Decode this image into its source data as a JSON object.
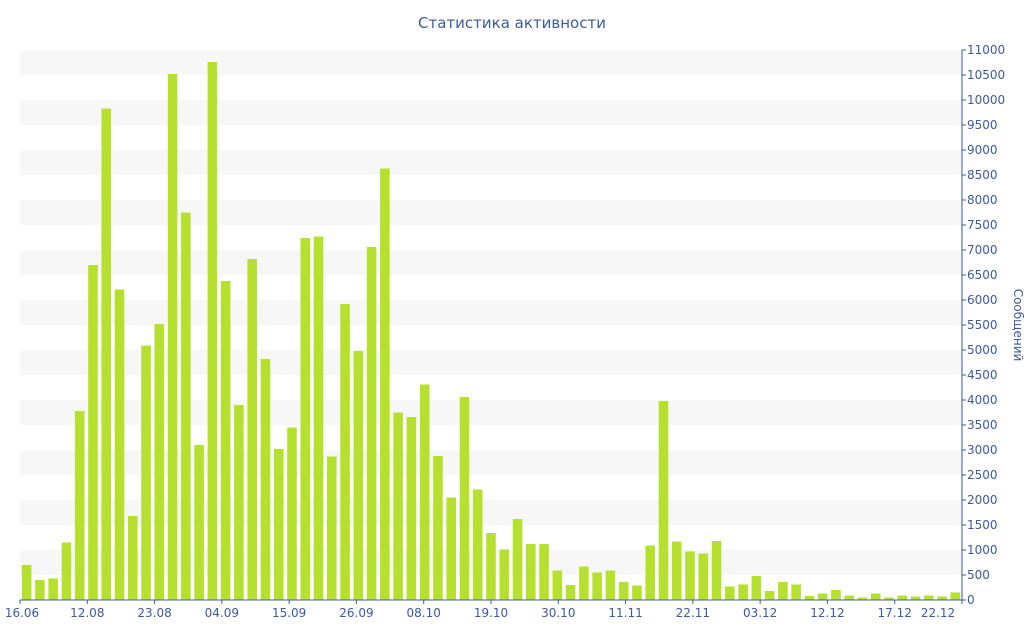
{
  "chart_data": {
    "type": "bar",
    "title": "Статистика активности",
    "xlabel": "",
    "ylabel": "Сообщений",
    "ylim": [
      0,
      11000
    ],
    "y_axis_side": "right",
    "y_ticks": [
      0,
      500,
      1000,
      1500,
      2000,
      2500,
      3000,
      3500,
      4000,
      4500,
      5000,
      5500,
      6000,
      6500,
      7000,
      7500,
      8000,
      8500,
      9000,
      9500,
      10000,
      10500,
      11000
    ],
    "x_tick_labels": [
      "16.06",
      "12.08",
      "23.08",
      "04.09",
      "15.09",
      "26.09",
      "08.10",
      "19.10",
      "30.10",
      "11.11",
      "22.11",
      "03.12",
      "12.12",
      "17.12",
      "22.12"
    ],
    "grid": "alternating horizontal bands",
    "bar_color": "#b5e02e",
    "values": [
      700,
      400,
      430,
      1150,
      3780,
      6700,
      9830,
      6210,
      1680,
      5090,
      5520,
      10520,
      7750,
      3100,
      10760,
      6380,
      3900,
      6820,
      4820,
      3020,
      3450,
      7240,
      7270,
      2870,
      5920,
      4980,
      7060,
      8630,
      3750,
      3660,
      4310,
      2880,
      2050,
      4060,
      2210,
      1340,
      1010,
      1620,
      1120,
      1120,
      590,
      300,
      670,
      550,
      590,
      360,
      290,
      1090,
      3980,
      1170,
      970,
      930,
      1180,
      270,
      310,
      480,
      180,
      360,
      310,
      80,
      130,
      200,
      90,
      50,
      130,
      50,
      90,
      70,
      90,
      70,
      150
    ]
  }
}
